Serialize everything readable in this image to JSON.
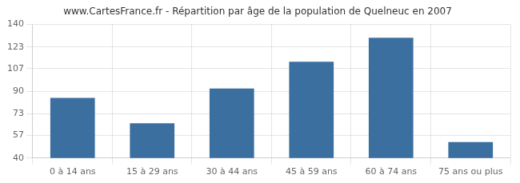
{
  "chart_data": {
    "type": "bar",
    "title": "www.CartesFrance.fr - Répartition par âge de la population de Quelneuc en 2007",
    "categories": [
      "0 à 14 ans",
      "15 à 29 ans",
      "30 à 44 ans",
      "45 à 59 ans",
      "60 à 74 ans",
      "75 ans ou plus"
    ],
    "values": [
      85,
      66,
      92,
      112,
      130,
      52
    ],
    "color": "#3a6f9f",
    "ylim": [
      40,
      140
    ],
    "yticks": [
      40,
      57,
      73,
      90,
      107,
      123,
      140
    ],
    "grid": true
  }
}
